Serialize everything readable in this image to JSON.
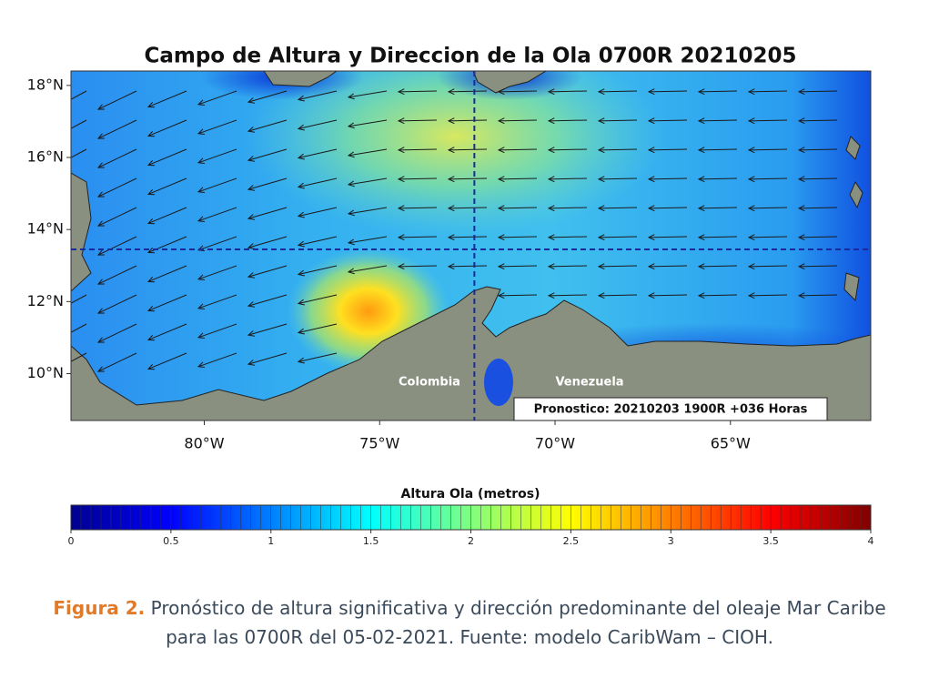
{
  "map": {
    "title": "Campo de Altura y Direccion de la Ola 0700R 20210205",
    "lonlim": [
      -83.8,
      -61
    ],
    "latlim": [
      8.7,
      18.4
    ],
    "xticks": [
      {
        "value": -80,
        "label": "80°W"
      },
      {
        "value": -75,
        "label": "75°W"
      },
      {
        "value": -70,
        "label": "70°W"
      },
      {
        "value": -65,
        "label": "65°W"
      }
    ],
    "yticks": [
      {
        "value": 10,
        "label": "10°N"
      },
      {
        "value": 12,
        "label": "12°N"
      },
      {
        "value": 14,
        "label": "14°N"
      },
      {
        "value": 16,
        "label": "16°N"
      },
      {
        "value": 18,
        "label": "18°N"
      }
    ],
    "crosshair": {
      "lon": -72.3,
      "lat": 13.45
    },
    "labels": [
      "Colombia",
      "Venezuela"
    ],
    "forecast": "Pronostico: 20210203 1900R +036 Horas"
  },
  "colorbar": {
    "label": "Altura Ola (metros)",
    "range": [
      0,
      4
    ],
    "ticks": [
      0,
      0.5,
      1,
      1.5,
      2,
      2.5,
      3,
      3.5,
      4
    ]
  },
  "caption": {
    "figure": "Figura 2.",
    "text": "Pronóstico de altura significativa y dirección predominante del oleaje Mar Caribe para las 0700R del 05-02-2021. Fuente: modelo CaribWam – CIOH."
  }
}
